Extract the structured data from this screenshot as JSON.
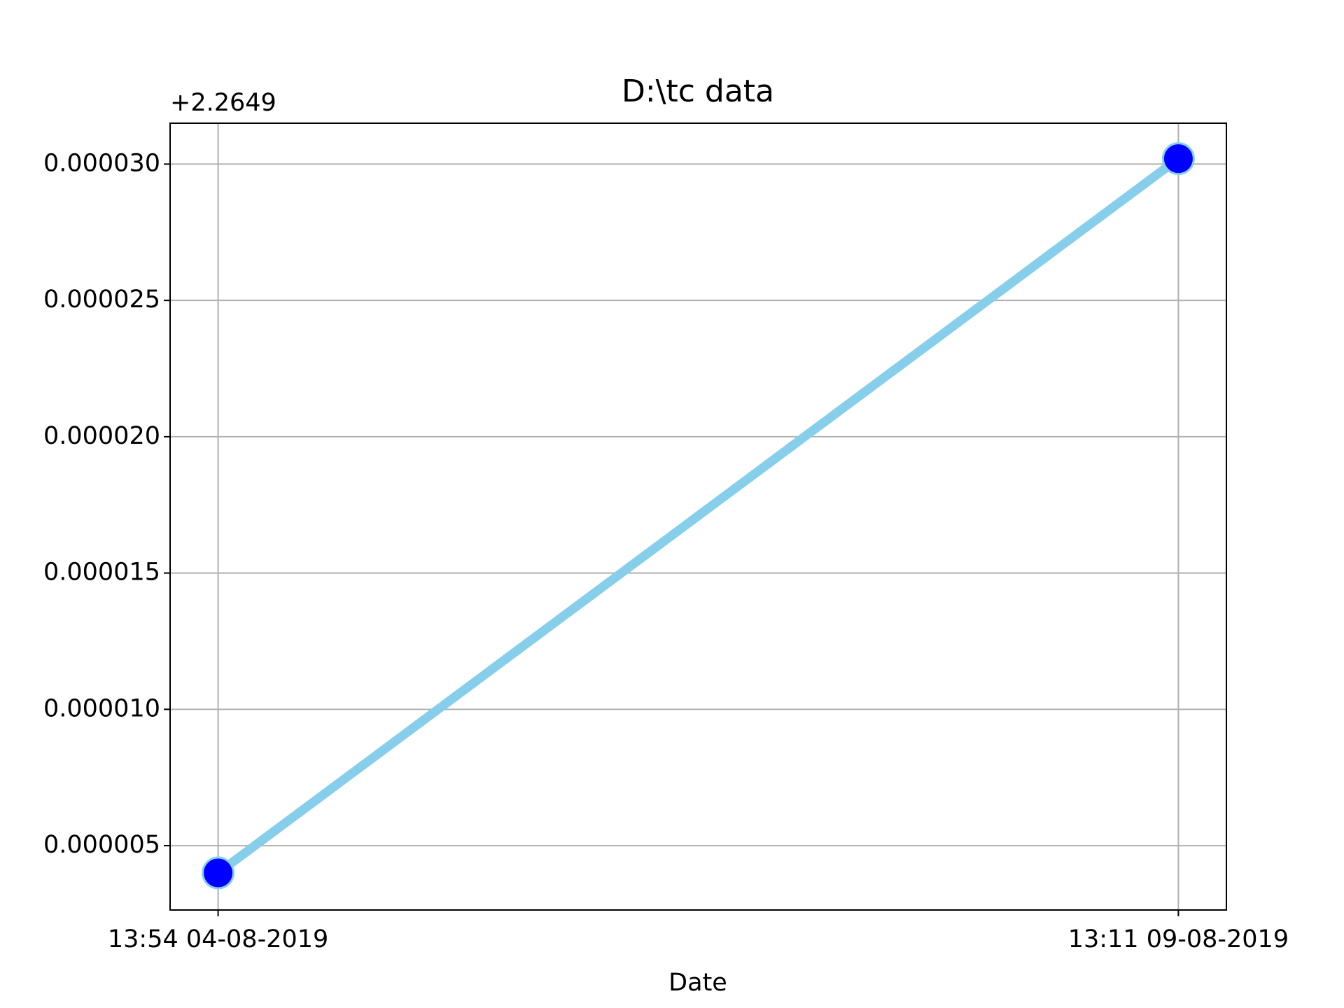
{
  "chart_data": {
    "type": "line",
    "title": "D:\\tc data",
    "xlabel": "Date",
    "y_offset_text": "+2.2649",
    "categories": [
      "13:54 04-08-2019",
      "13:11 09-08-2019"
    ],
    "series": [
      {
        "color": "#87ceeb",
        "marker_color": "#0000ff",
        "values": [
          4e-06,
          3.02e-05
        ]
      }
    ],
    "ylim": [
      2.64e-06,
      3.15e-05
    ],
    "yticks": [
      {
        "value": 5e-06,
        "label": "0.000005"
      },
      {
        "value": 1e-05,
        "label": "0.000010"
      },
      {
        "value": 1.5e-05,
        "label": "0.000015"
      },
      {
        "value": 2e-05,
        "label": "0.000020"
      },
      {
        "value": 2.5e-05,
        "label": "0.000025"
      },
      {
        "value": 3e-05,
        "label": "0.000030"
      }
    ],
    "grid": true
  }
}
